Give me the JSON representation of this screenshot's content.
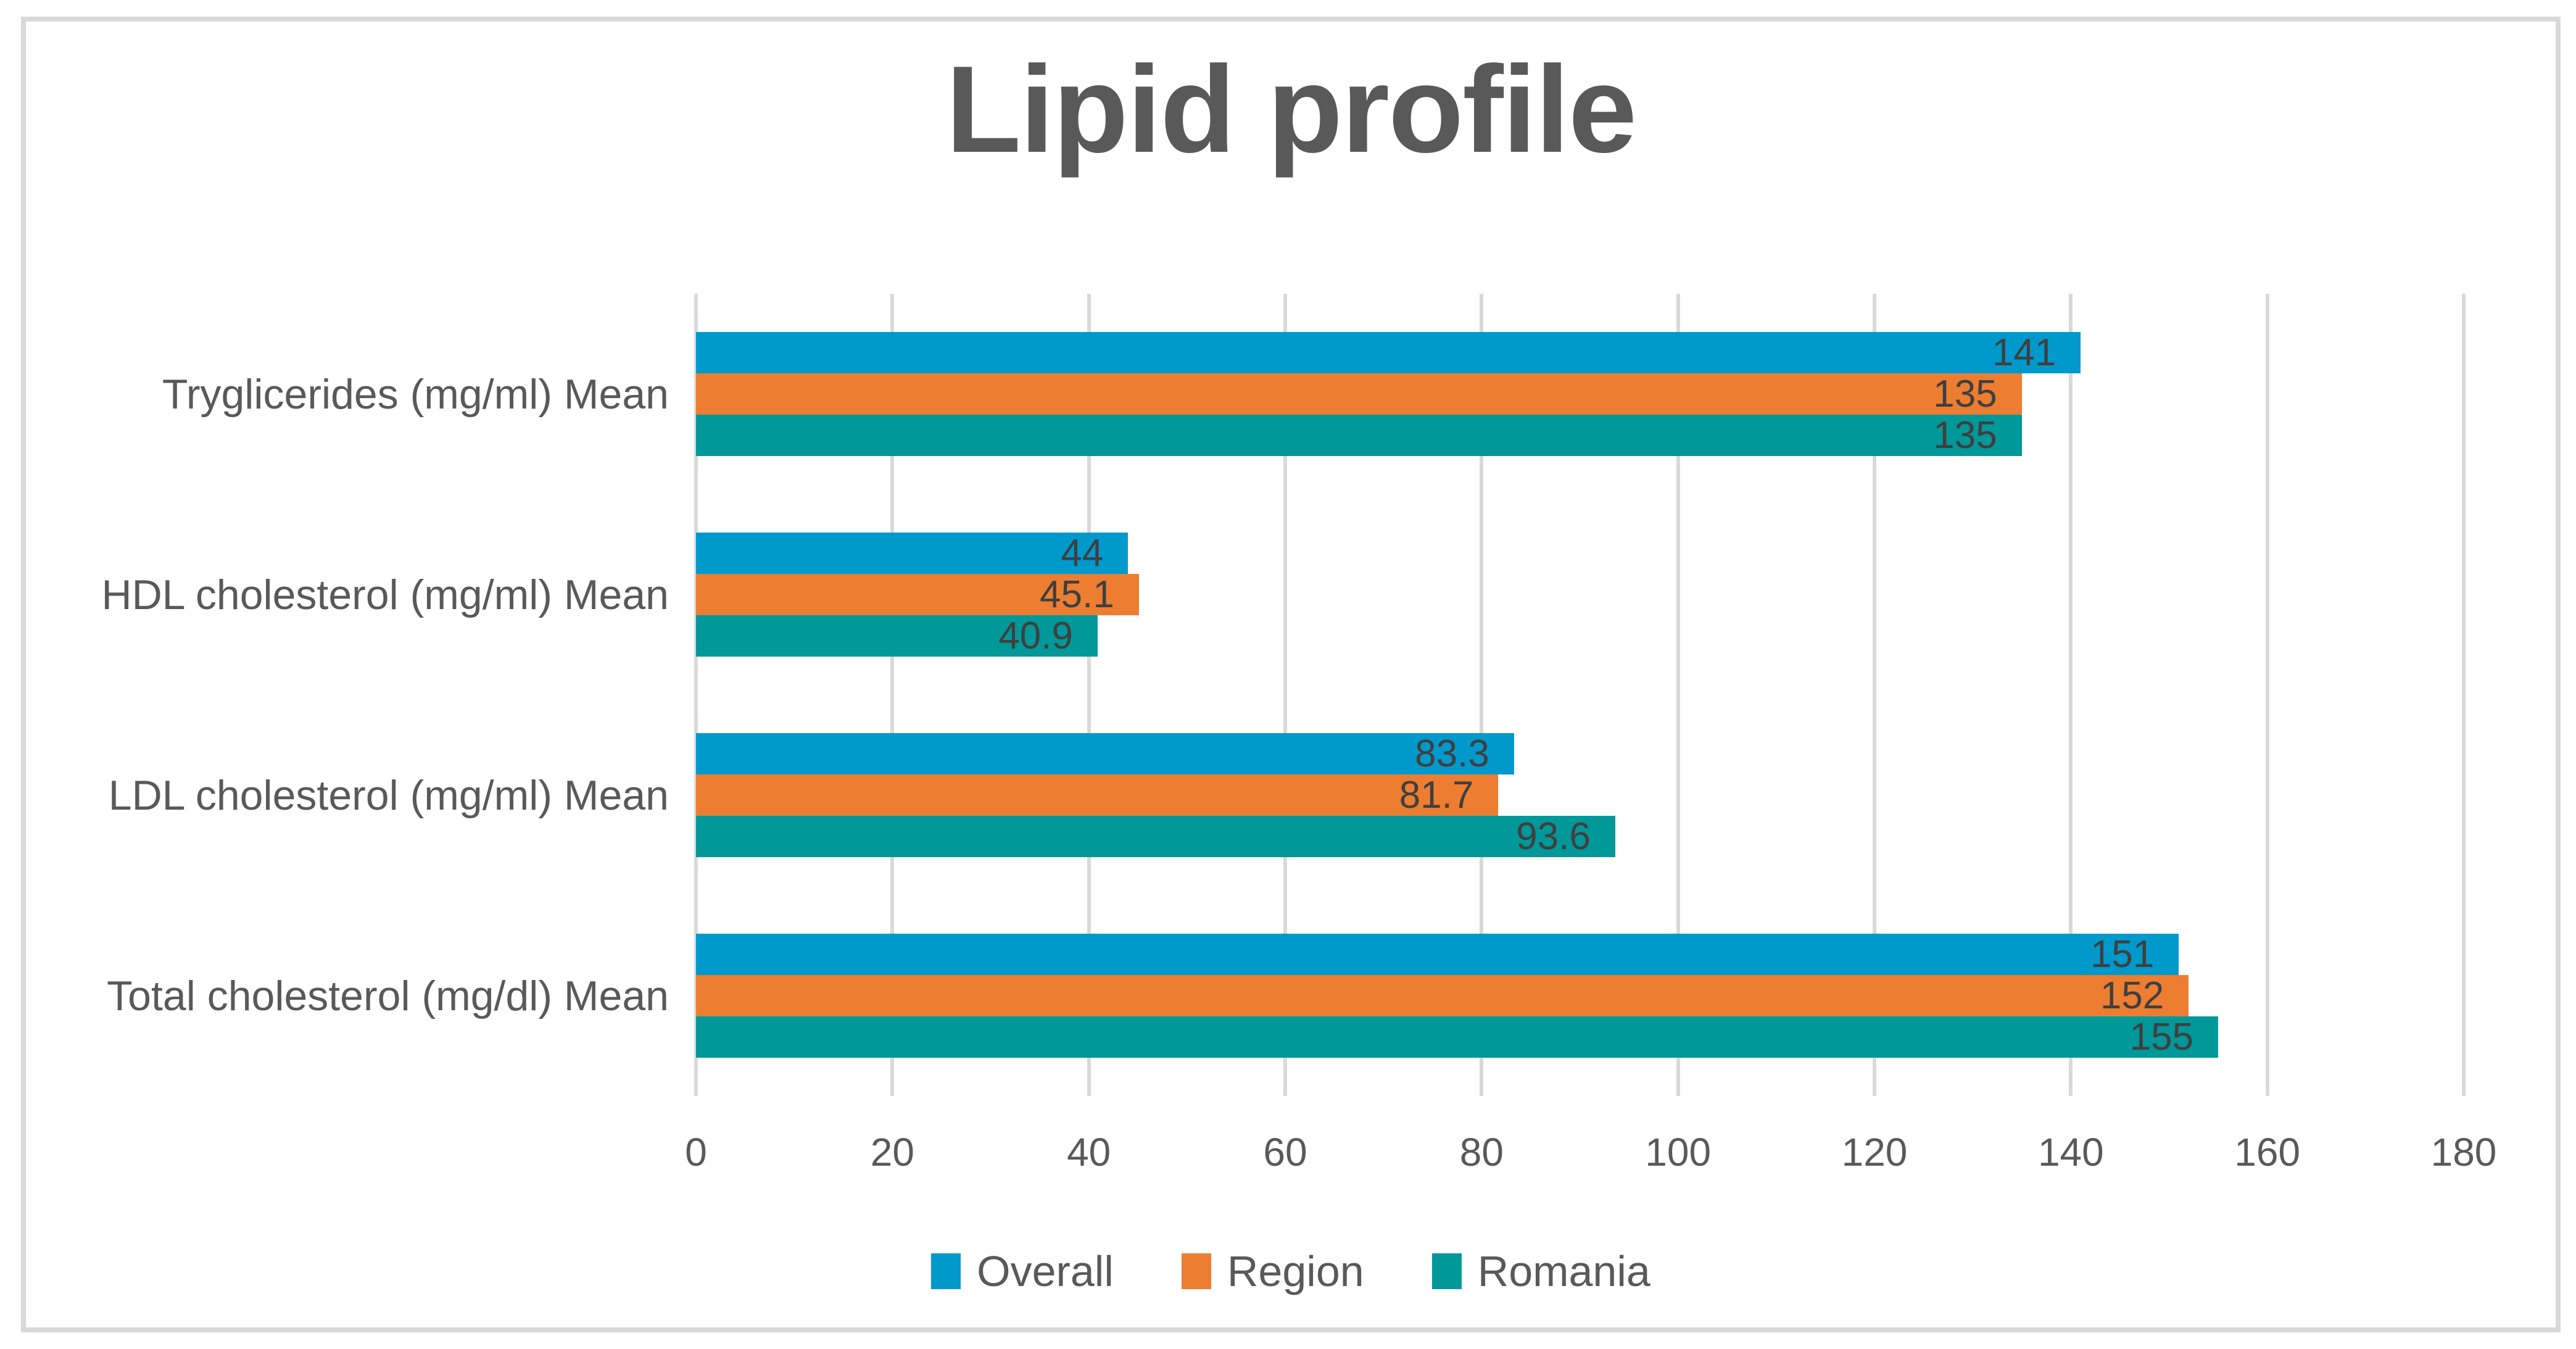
{
  "frame": {
    "background_color": "#FFFFFF",
    "border_color": "#D9D9D9"
  },
  "chart_data": {
    "type": "bar",
    "orientation": "horizontal",
    "title": "Lipid profile",
    "title_color": "#595959",
    "categories": [
      "Tryglicerides (mg/ml) Mean",
      "HDL cholesterol (mg/ml) Mean",
      "LDL cholesterol (mg/ml) Mean",
      "Total cholesterol (mg/dl) Mean"
    ],
    "series": [
      {
        "name": "Overall",
        "color": "#0099CC",
        "values": [
          141,
          44,
          83.3,
          151
        ]
      },
      {
        "name": "Region",
        "color": "#ED7D31",
        "values": [
          135,
          45.1,
          81.7,
          152
        ]
      },
      {
        "name": "Romania",
        "color": "#009899",
        "values": [
          135,
          40.9,
          93.6,
          155
        ]
      }
    ],
    "data_labels": {
      "visible": true,
      "position": "inside-end",
      "color": "#3F3F3F"
    },
    "x_axis": {
      "min": 0,
      "max": 180,
      "tick_step": 20,
      "ticks": [
        0,
        20,
        40,
        60,
        80,
        100,
        120,
        140,
        160,
        180
      ],
      "label_color": "#595959"
    },
    "grid": true,
    "gridline_color": "#D9D9D9",
    "category_label_color": "#595959",
    "legend_position": "bottom",
    "legend_text_color": "#595959"
  }
}
